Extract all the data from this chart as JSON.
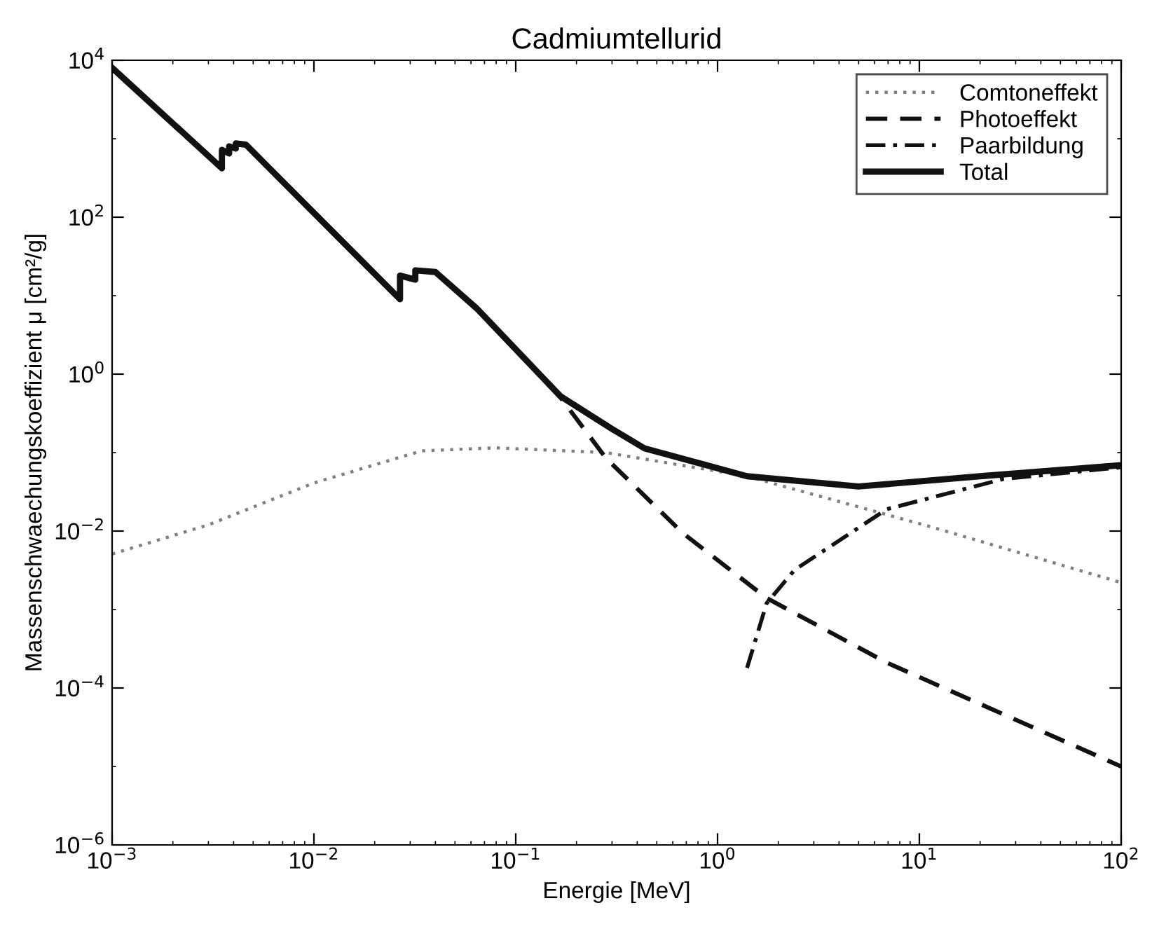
{
  "chart_data": {
    "type": "line",
    "title": "Cadmiumtellurid",
    "xlabel": "Energie [MeV]",
    "ylabel": "Massenschwaechungskoeffizient μ [cm²/g]",
    "log": "xy",
    "xlim": [
      0.001,
      100
    ],
    "ylim": [
      1e-06,
      10000
    ],
    "xticks": [
      {
        "value": 0.001,
        "label": "10$^{−3}$"
      },
      {
        "value": 0.01,
        "label": "10$^{−2}$"
      },
      {
        "value": 0.1,
        "label": "10$^{−1}$"
      },
      {
        "value": 1,
        "label": "10$^{0}$"
      },
      {
        "value": 10,
        "label": "10$^{1}$"
      },
      {
        "value": 100,
        "label": "10$^{2}$"
      }
    ],
    "yticks": [
      {
        "value": 1e-06,
        "label": "10$^{−6}$"
      },
      {
        "value": 0.0001,
        "label": "10$^{−4}$"
      },
      {
        "value": 0.01,
        "label": "10$^{−2}$"
      },
      {
        "value": 1,
        "label": "10$^{0}$"
      },
      {
        "value": 100,
        "label": "10$^{2}$"
      },
      {
        "value": 10000,
        "label": "10$^{4}$"
      }
    ],
    "grid": false,
    "legend": "top right",
    "marker": "none",
    "series": [
      {
        "name": "Comtoneffekt",
        "color": "#808080",
        "line_style": "dotted",
        "x": [
          0.001,
          0.003,
          0.01,
          0.034,
          0.079,
          0.28,
          1.4,
          11.9,
          100
        ],
        "values": [
          0.0051,
          0.012,
          0.041,
          0.105,
          0.115,
          0.1,
          0.05,
          0.011,
          0.0022
        ]
      },
      {
        "name": "Photoeffekt",
        "color": "#111111",
        "line_style": "dashed",
        "x": [
          0.001,
          0.0035,
          0.0035,
          0.0038,
          0.0038,
          0.0041,
          0.0041,
          0.0046,
          0.0267,
          0.0267,
          0.0318,
          0.0318,
          0.04,
          0.064,
          0.167,
          0.28,
          0.67,
          1.75,
          6.9,
          100
        ],
        "values": [
          8000,
          420,
          720,
          650,
          800,
          750,
          870,
          840,
          9,
          18,
          16,
          21,
          20,
          6.9,
          0.5,
          0.085,
          0.0095,
          0.0014,
          0.00021,
          1e-05
        ]
      },
      {
        "name": "Paarbildung",
        "color": "#111111",
        "line_style": "dashdot",
        "x": [
          1.4,
          1.75,
          2.41,
          6.9,
          26,
          100
        ],
        "values": [
          0.00018,
          0.0012,
          0.0032,
          0.019,
          0.046,
          0.065
        ]
      },
      {
        "name": "Total",
        "color": "#111111",
        "line_style": "solid",
        "x": [
          0.001,
          0.0035,
          0.0035,
          0.0038,
          0.0038,
          0.0041,
          0.0041,
          0.0046,
          0.0267,
          0.0267,
          0.0318,
          0.0318,
          0.04,
          0.064,
          0.167,
          0.3,
          0.435,
          1.4,
          5,
          20,
          100
        ],
        "values": [
          8000,
          420,
          720,
          650,
          800,
          750,
          870,
          840,
          9,
          18,
          16,
          21,
          20,
          6.9,
          0.52,
          0.2,
          0.113,
          0.05,
          0.037,
          0.05,
          0.069
        ]
      }
    ]
  }
}
